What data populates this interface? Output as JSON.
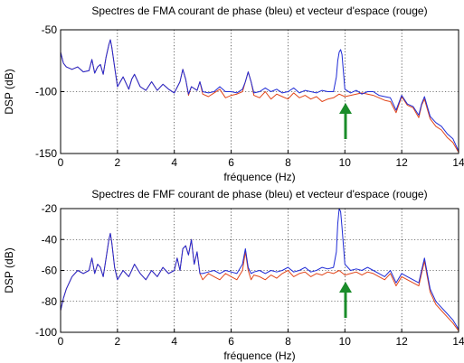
{
  "colors": {
    "phase": "#1f2bd6",
    "vector": "#e2461a",
    "arrow": "#1a8c2a"
  },
  "chart_data": [
    {
      "type": "line",
      "title": "Spectres de FMA courant de phase (bleu) et vecteur d'espace (rouge)",
      "xlabel": "fréquence (Hz)",
      "ylabel": "DSP (dB)",
      "xlim": [
        0,
        14
      ],
      "ylim": [
        -150,
        -50
      ],
      "xticks": [
        "0",
        "2",
        "4",
        "6",
        "8",
        "10",
        "12",
        "14"
      ],
      "yticks": [
        "-50",
        "-100",
        "-150"
      ],
      "ytick_values": [
        -50,
        -100,
        -150
      ],
      "grid": true,
      "arrow_x": 9.8,
      "series": [
        {
          "color": "#1f2bd6",
          "x": [
            0,
            0.1,
            0.2,
            0.4,
            0.6,
            0.8,
            1.0,
            1.1,
            1.2,
            1.3,
            1.4,
            1.5,
            1.6,
            1.7,
            1.75,
            1.8,
            1.9,
            2.0,
            2.2,
            2.4,
            2.5,
            2.6,
            2.8,
            3.0,
            3.2,
            3.4,
            3.6,
            3.8,
            4.0,
            4.2,
            4.3,
            4.4,
            4.5,
            4.6,
            4.8,
            4.9,
            5.0,
            5.2,
            5.4,
            5.6,
            5.8,
            6.0,
            6.2,
            6.4,
            6.5,
            6.6,
            6.7,
            6.8,
            7.0,
            7.2,
            7.4,
            7.6,
            7.8,
            8.0,
            8.2,
            8.4,
            8.6,
            8.8,
            9.0,
            9.2,
            9.4,
            9.6,
            9.7,
            9.75,
            9.8,
            9.85,
            9.9,
            10.0,
            10.2,
            10.4,
            10.6,
            10.8,
            11.0,
            11.2,
            11.4,
            11.6,
            11.8,
            12.0,
            12.2,
            12.4,
            12.6,
            12.7,
            12.8,
            12.9,
            13.0,
            13.2,
            13.4,
            13.6,
            13.8,
            14.0
          ],
          "y": [
            -68,
            -77,
            -80,
            -82,
            -80,
            -84,
            -83,
            -74,
            -85,
            -80,
            -78,
            -86,
            -72,
            -62,
            -58,
            -64,
            -80,
            -96,
            -88,
            -98,
            -90,
            -86,
            -96,
            -99,
            -92,
            -99,
            -94,
            -98,
            -101,
            -92,
            -82,
            -90,
            -102,
            -96,
            -99,
            -92,
            -100,
            -101,
            -100,
            -96,
            -100,
            -100,
            -101,
            -98,
            -92,
            -84,
            -92,
            -101,
            -100,
            -97,
            -100,
            -98,
            -101,
            -100,
            -97,
            -101,
            -99,
            -100,
            -101,
            -99,
            -100,
            -100,
            -88,
            -75,
            -68,
            -66,
            -70,
            -98,
            -101,
            -99,
            -102,
            -100,
            -100,
            -103,
            -104,
            -105,
            -115,
            -103,
            -110,
            -112,
            -119,
            -110,
            -104,
            -112,
            -120,
            -125,
            -128,
            -134,
            -138,
            -148
          ]
        },
        {
          "color": "#e2461a",
          "x": [
            0,
            0.1,
            0.2,
            0.4,
            0.6,
            0.8,
            1.0,
            1.1,
            1.2,
            1.3,
            1.4,
            1.5,
            1.6,
            1.7,
            1.75,
            1.8,
            1.9,
            2.0,
            2.2,
            2.4,
            2.5,
            2.6,
            2.8,
            3.0,
            3.2,
            3.4,
            3.6,
            3.8,
            4.0,
            4.2,
            4.3,
            4.4,
            4.5,
            4.6,
            4.8,
            4.9,
            5.0,
            5.2,
            5.4,
            5.6,
            5.8,
            6.0,
            6.2,
            6.4,
            6.5,
            6.6,
            6.7,
            6.8,
            7.0,
            7.2,
            7.4,
            7.6,
            7.8,
            8.0,
            8.2,
            8.4,
            8.6,
            8.8,
            9.0,
            9.2,
            9.4,
            9.6,
            9.8,
            10.0,
            10.2,
            10.4,
            10.6,
            10.8,
            11.0,
            11.2,
            11.4,
            11.6,
            11.8,
            12.0,
            12.2,
            12.4,
            12.6,
            12.7,
            12.8,
            12.9,
            13.0,
            13.2,
            13.4,
            13.6,
            13.8,
            14.0
          ],
          "y": [
            -68,
            -77,
            -80,
            -82,
            -80,
            -84,
            -83,
            -74,
            -85,
            -80,
            -78,
            -86,
            -72,
            -62,
            -58,
            -64,
            -80,
            -96,
            -88,
            -98,
            -90,
            -86,
            -96,
            -99,
            -92,
            -99,
            -94,
            -98,
            -101,
            -92,
            -82,
            -90,
            -103,
            -96,
            -99,
            -92,
            -102,
            -104,
            -101,
            -98,
            -105,
            -103,
            -102,
            -100,
            -92,
            -84,
            -92,
            -103,
            -105,
            -100,
            -106,
            -102,
            -104,
            -106,
            -101,
            -105,
            -103,
            -106,
            -104,
            -108,
            -106,
            -105,
            -102,
            -104,
            -103,
            -102,
            -101,
            -102,
            -103,
            -105,
            -107,
            -108,
            -117,
            -104,
            -111,
            -113,
            -121,
            -111,
            -106,
            -114,
            -122,
            -128,
            -131,
            -137,
            -141,
            -149
          ]
        }
      ]
    },
    {
      "type": "line",
      "title": "Spectres de FMF courant de phase (bleu) et vecteur d'espace (rouge)",
      "xlabel": "fréquence (Hz)",
      "ylabel": "DSP (dB)",
      "xlim": [
        0,
        14
      ],
      "ylim": [
        -100,
        -20
      ],
      "xticks": [
        "0",
        "2",
        "4",
        "6",
        "8",
        "10",
        "12",
        "14"
      ],
      "yticks": [
        "-20",
        "-40",
        "-60",
        "-80",
        "-100"
      ],
      "ytick_values": [
        -20,
        -40,
        -60,
        -80,
        -100
      ],
      "grid": true,
      "arrow_x": 9.8,
      "series": [
        {
          "color": "#1f2bd6",
          "x": [
            0,
            0.1,
            0.2,
            0.4,
            0.6,
            0.8,
            1.0,
            1.1,
            1.2,
            1.3,
            1.4,
            1.5,
            1.6,
            1.7,
            1.75,
            1.8,
            1.9,
            2.0,
            2.2,
            2.4,
            2.6,
            2.8,
            3.0,
            3.2,
            3.4,
            3.6,
            3.8,
            4.0,
            4.1,
            4.2,
            4.3,
            4.4,
            4.5,
            4.6,
            4.7,
            4.8,
            4.9,
            5.0,
            5.2,
            5.4,
            5.6,
            5.8,
            6.0,
            6.2,
            6.4,
            6.5,
            6.6,
            6.7,
            6.8,
            7.0,
            7.2,
            7.4,
            7.6,
            7.8,
            8.0,
            8.2,
            8.4,
            8.6,
            8.8,
            9.0,
            9.2,
            9.4,
            9.6,
            9.7,
            9.75,
            9.8,
            9.85,
            9.9,
            10.0,
            10.2,
            10.4,
            10.6,
            10.8,
            11.0,
            11.2,
            11.4,
            11.6,
            11.8,
            12.0,
            12.2,
            12.4,
            12.6,
            12.7,
            12.8,
            12.9,
            13.0,
            13.2,
            13.4,
            13.6,
            13.8,
            14.0
          ],
          "y": [
            -86,
            -78,
            -72,
            -64,
            -60,
            -62,
            -60,
            -52,
            -62,
            -56,
            -58,
            -64,
            -52,
            -40,
            -36,
            -42,
            -58,
            -66,
            -60,
            -64,
            -56,
            -62,
            -66,
            -60,
            -64,
            -58,
            -62,
            -60,
            -52,
            -60,
            -46,
            -44,
            -50,
            -40,
            -56,
            -48,
            -62,
            -62,
            -61,
            -60,
            -62,
            -60,
            -61,
            -62,
            -56,
            -46,
            -58,
            -62,
            -61,
            -60,
            -62,
            -60,
            -61,
            -60,
            -58,
            -61,
            -60,
            -58,
            -61,
            -60,
            -58,
            -59,
            -58,
            -48,
            -30,
            -20,
            -22,
            -32,
            -56,
            -60,
            -59,
            -60,
            -58,
            -60,
            -62,
            -64,
            -60,
            -68,
            -62,
            -64,
            -66,
            -68,
            -60,
            -52,
            -62,
            -72,
            -80,
            -84,
            -88,
            -92,
            -98
          ]
        },
        {
          "color": "#e2461a",
          "x": [
            0,
            0.1,
            0.2,
            0.4,
            0.6,
            0.8,
            1.0,
            1.1,
            1.2,
            1.3,
            1.4,
            1.5,
            1.6,
            1.7,
            1.75,
            1.8,
            1.9,
            2.0,
            2.2,
            2.4,
            2.6,
            2.8,
            3.0,
            3.2,
            3.4,
            3.6,
            3.8,
            4.0,
            4.1,
            4.2,
            4.3,
            4.4,
            4.5,
            4.6,
            4.7,
            4.8,
            4.9,
            5.0,
            5.2,
            5.4,
            5.6,
            5.8,
            6.0,
            6.2,
            6.4,
            6.5,
            6.6,
            6.7,
            6.8,
            7.0,
            7.2,
            7.4,
            7.6,
            7.8,
            8.0,
            8.2,
            8.4,
            8.6,
            8.8,
            9.0,
            9.2,
            9.4,
            9.6,
            9.8,
            10.0,
            10.2,
            10.4,
            10.6,
            10.8,
            11.0,
            11.2,
            11.4,
            11.6,
            11.8,
            12.0,
            12.2,
            12.4,
            12.6,
            12.7,
            12.8,
            12.9,
            13.0,
            13.2,
            13.4,
            13.6,
            13.8,
            14.0
          ],
          "y": [
            -86,
            -78,
            -72,
            -64,
            -60,
            -62,
            -60,
            -52,
            -62,
            -56,
            -58,
            -64,
            -52,
            -40,
            -36,
            -42,
            -58,
            -66,
            -60,
            -64,
            -56,
            -62,
            -66,
            -60,
            -64,
            -58,
            -62,
            -60,
            -52,
            -60,
            -46,
            -44,
            -50,
            -40,
            -56,
            -48,
            -62,
            -66,
            -62,
            -64,
            -66,
            -62,
            -64,
            -66,
            -60,
            -48,
            -60,
            -66,
            -63,
            -64,
            -66,
            -63,
            -65,
            -62,
            -60,
            -64,
            -62,
            -61,
            -64,
            -62,
            -63,
            -61,
            -62,
            -60,
            -63,
            -62,
            -61,
            -63,
            -61,
            -62,
            -64,
            -66,
            -62,
            -70,
            -64,
            -66,
            -68,
            -70,
            -62,
            -54,
            -64,
            -74,
            -82,
            -86,
            -90,
            -94,
            -99
          ]
        }
      ]
    }
  ]
}
